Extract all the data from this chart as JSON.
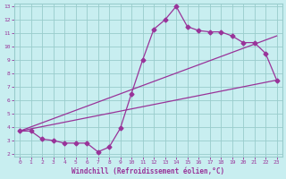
{
  "xlabel": "Windchill (Refroidissement éolien,°C)",
  "bg_color": "#c8eef0",
  "grid_color": "#99cccc",
  "line_color": "#993399",
  "xlim": [
    -0.5,
    23.5
  ],
  "ylim": [
    1.8,
    13.2
  ],
  "xticks": [
    0,
    1,
    2,
    3,
    4,
    5,
    6,
    7,
    8,
    9,
    10,
    11,
    12,
    13,
    14,
    15,
    16,
    17,
    18,
    19,
    20,
    21,
    22,
    23
  ],
  "yticks": [
    2,
    3,
    4,
    5,
    6,
    7,
    8,
    9,
    10,
    11,
    12,
    13
  ],
  "line1_x": [
    0,
    1,
    2,
    3,
    4,
    5,
    6,
    7,
    8,
    9,
    10,
    11,
    12,
    13,
    14,
    15,
    16,
    17,
    18,
    19,
    20,
    21,
    22,
    23
  ],
  "line1_y": [
    3.7,
    3.7,
    3.1,
    3.0,
    2.8,
    2.8,
    2.8,
    2.15,
    2.5,
    3.9,
    6.5,
    9.0,
    11.3,
    12.0,
    13.0,
    11.5,
    11.2,
    11.1,
    11.1,
    10.8,
    10.3,
    10.3,
    9.5,
    7.5
  ],
  "line2_x": [
    0,
    23
  ],
  "line2_y": [
    3.7,
    10.8
  ],
  "line3_x": [
    0,
    23
  ],
  "line3_y": [
    3.7,
    7.5
  ],
  "markersize": 2.5,
  "linewidth": 0.9
}
